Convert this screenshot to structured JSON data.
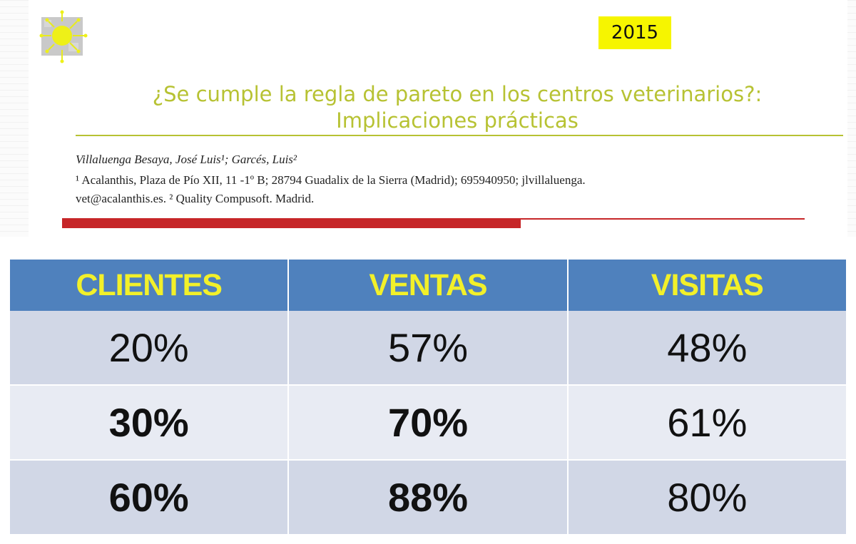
{
  "header": {
    "year": "2015",
    "title_line1": "¿Se cumple la regla de pareto en los centros veterinarios?:",
    "title_line2": "Implicaciones prácticas",
    "authors": "Villaluenga Besaya, José Luis¹; Garcés, Luis²",
    "affiliation_line1": "¹ Acalanthis, Plaza de Pío XII, 11 -1º B; 28794 Guadalix de la Sierra (Madrid); 695940950; jlvillaluenga.",
    "affiliation_line2": "vet@acalanthis.es. ² Quality Compusoft. Madrid.",
    "logo_caption": ""
  },
  "table": {
    "headers": [
      "CLIENTES",
      "VENTAS",
      "VISITAS"
    ],
    "rows": [
      [
        "20%",
        "57%",
        "48%"
      ],
      [
        "30%",
        "70%",
        "61%"
      ],
      [
        "60%",
        "88%",
        "80%"
      ]
    ]
  },
  "colors": {
    "header_bg": "#4f81bd",
    "header_text": "#f2f02a",
    "title": "#b7c233",
    "year_bg": "#f6f500",
    "accent_red": "#c62628",
    "purple": "#7131a3"
  }
}
